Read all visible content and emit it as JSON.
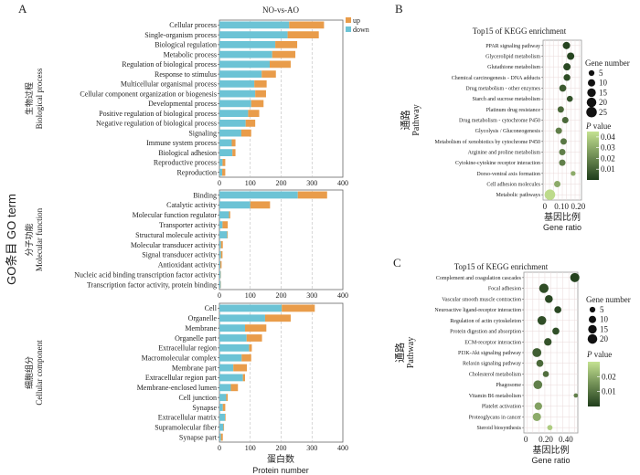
{
  "panel_labels": {
    "a": "A",
    "b": "B",
    "c": "C"
  },
  "colors": {
    "up": "#e99c4a",
    "down": "#6cc3d5",
    "pvalue_low": "#1f3d1b",
    "pvalue_high": "#c4e291"
  },
  "chart_data": [
    {
      "type": "bar",
      "stacked": true,
      "orientation": "horizontal",
      "title": "NO-vs-AO",
      "y_group_label": "GO条目 GO term",
      "xlabel_cn": "蛋白数",
      "xlabel": "Protein number",
      "xlim": [
        0,
        400
      ],
      "xticks": [
        "0",
        "100",
        "200",
        "300",
        "400"
      ],
      "grid": "vertical dashed",
      "legend": {
        "position": "top-right",
        "entries": [
          "up",
          "down"
        ]
      },
      "groups": [
        {
          "label_cn": "生物过程",
          "label": "Biological process",
          "categories": [
            "Cellular process",
            "Single-organism process",
            "Biological regulation",
            "Metabolic process",
            "Regulation of biological process",
            "Response to stimulus",
            "Multicellular organismal process",
            "Cellular component organization or biogenesis",
            "Developmental process",
            "Positive regulation of biological process",
            "Negative regulation of biological process",
            "Signaling",
            "Immune system process",
            "Biological adhesion",
            "Reproductive process",
            "Reproduction"
          ],
          "series": [
            {
              "name": "down",
              "values": [
                226,
                221,
                181,
                171,
                163,
                137,
                113,
                116,
                103,
                93,
                85,
                71,
                40,
                42,
                10,
                9
              ]
            },
            {
              "name": "up",
              "values": [
                113,
                101,
                71,
                75,
                68,
                46,
                40,
                35,
                40,
                36,
                31,
                32,
                12,
                10,
                9,
                10
              ]
            }
          ]
        },
        {
          "label_cn": "分子功能",
          "label": "Molecular function",
          "categories": [
            "Binding",
            "Catalytic activity",
            "Molecular function regulator",
            "Transporter activity",
            "Structural molecule activity",
            "Molecular transducer activity",
            "Signal transducer activity",
            "Antioxidant activity",
            "Nucleic acid binding transcription factor activity",
            "Transcription factor activity, protein binding"
          ],
          "series": [
            {
              "name": "down",
              "values": [
                254,
                100,
                31,
                10,
                25,
                5,
                5,
                3,
                4,
                4
              ]
            },
            {
              "name": "up",
              "values": [
                95,
                64,
                4,
                17,
                2,
                6,
                5,
                4,
                1,
                1
              ]
            }
          ]
        },
        {
          "label_cn": "细胞组分",
          "label": "Cellular component",
          "categories": [
            "Cell",
            "Organelle",
            "Membrane",
            "Organelle part",
            "Extracellular region",
            "Macromolecular complex",
            "Membrane part",
            "Extracellular region part",
            "Membrane-enclosed lumen",
            "Cell junction",
            "Synapse",
            "Extracellular matrix",
            "Supramolecular fiber",
            "Synapse part"
          ],
          "series": [
            {
              "name": "down",
              "values": [
                202,
                148,
                83,
                88,
                96,
                72,
                45,
                76,
                37,
                22,
                11,
                18,
                13,
                5
              ]
            },
            {
              "name": "up",
              "values": [
                107,
                83,
                69,
                50,
                9,
                31,
                44,
                7,
                23,
                5,
                8,
                2,
                2,
                6
              ]
            }
          ]
        }
      ]
    },
    {
      "type": "scatter",
      "title": "Top15 of KEGG enrichment",
      "ylabel_cn": "通路",
      "ylabel": "Pathway",
      "xlabel_cn": "基因比例",
      "xlabel": "Gene ratio",
      "xlim": [
        -0.01,
        0.22
      ],
      "xticks": [
        {
          "v": 0,
          "label": "0"
        },
        {
          "v": 0.1,
          "label": "0.10"
        },
        {
          "v": 0.2,
          "label": "0.20"
        }
      ],
      "size_legend": {
        "title": "Gene number",
        "values": [
          5,
          10,
          15,
          20,
          25
        ]
      },
      "color_legend": {
        "title_italic": "P",
        "title_rest": " value",
        "range": [
          0,
          0.045
        ],
        "ticks": [
          "0.04",
          "0.03",
          "0.02",
          "0.01"
        ],
        "tick_values": [
          0.04,
          0.03,
          0.02,
          0.01
        ]
      },
      "grid": true,
      "points": [
        {
          "pathway": "PPAR signaling pathway",
          "gene_ratio": 0.13,
          "gene_number": 10,
          "p_value": 0.002
        },
        {
          "pathway": "Glycerolipid metabolism",
          "gene_ratio": 0.155,
          "gene_number": 10,
          "p_value": 0.002
        },
        {
          "pathway": "Glutathione metabolism",
          "gene_ratio": 0.133,
          "gene_number": 10,
          "p_value": 0.003
        },
        {
          "pathway": "Chemical carcinogenesis - DNA adducts",
          "gene_ratio": 0.133,
          "gene_number": 8,
          "p_value": 0.004
        },
        {
          "pathway": "Drug metabolism - other enzymes",
          "gene_ratio": 0.108,
          "gene_number": 9,
          "p_value": 0.008
        },
        {
          "pathway": "Starch and sucrose metabolism",
          "gene_ratio": 0.15,
          "gene_number": 6,
          "p_value": 0.006
        },
        {
          "pathway": "Platinum drug resistance",
          "gene_ratio": 0.096,
          "gene_number": 7,
          "p_value": 0.012
        },
        {
          "pathway": "Drug metabolism - cytochrome P450",
          "gene_ratio": 0.123,
          "gene_number": 7,
          "p_value": 0.012
        },
        {
          "pathway": "Glycolysis / Gluconeogenesis",
          "gene_ratio": 0.084,
          "gene_number": 7,
          "p_value": 0.018
        },
        {
          "pathway": "Metabolism of xenobiotics by cytochrome P450",
          "gene_ratio": 0.113,
          "gene_number": 7,
          "p_value": 0.016
        },
        {
          "pathway": "Arginine and proline metabolism",
          "gene_ratio": 0.105,
          "gene_number": 7,
          "p_value": 0.018
        },
        {
          "pathway": "Cytokine-cytokine receptor interaction",
          "gene_ratio": 0.105,
          "gene_number": 7,
          "p_value": 0.018
        },
        {
          "pathway": "Dorso-ventral axis formation",
          "gene_ratio": 0.17,
          "gene_number": 3,
          "p_value": 0.03
        },
        {
          "pathway": "Cell adhesion molecules",
          "gene_ratio": 0.075,
          "gene_number": 7,
          "p_value": 0.03
        },
        {
          "pathway": "Metabolic pathways",
          "gene_ratio": 0.031,
          "gene_number": 25,
          "p_value": 0.043
        }
      ]
    },
    {
      "type": "scatter",
      "title": "Top15 of KEGG enrichment",
      "ylabel_cn": "通路",
      "ylabel": "Pathway",
      "xlabel_cn": "基因比例",
      "xlabel": "Gene ratio",
      "xlim": [
        -0.02,
        0.52
      ],
      "xticks": [
        {
          "v": 0,
          "label": "0"
        },
        {
          "v": 0.2,
          "label": "0.20"
        },
        {
          "v": 0.4,
          "label": "0.40"
        }
      ],
      "size_legend": {
        "title": "Gene number",
        "values": [
          5,
          10,
          15,
          20
        ]
      },
      "color_legend": {
        "title_italic": "P",
        "title_rest": " value",
        "range": [
          0,
          0.03
        ],
        "ticks": [
          "0.02",
          "0.01"
        ],
        "tick_values": [
          0.02,
          0.01
        ]
      },
      "grid": true,
      "points": [
        {
          "pathway": "Complement and coagulation cascades",
          "gene_ratio": 0.49,
          "gene_number": 18,
          "p_value": 0.001
        },
        {
          "pathway": "Focal adhesion",
          "gene_ratio": 0.18,
          "gene_number": 19,
          "p_value": 0.003
        },
        {
          "pathway": "Vascular smooth muscle contraction",
          "gene_ratio": 0.23,
          "gene_number": 12,
          "p_value": 0.002
        },
        {
          "pathway": "Neuroactive ligand-receptor interaction",
          "gene_ratio": 0.32,
          "gene_number": 9,
          "p_value": 0.002
        },
        {
          "pathway": "Regulation of actin cytoskeleton",
          "gene_ratio": 0.16,
          "gene_number": 16,
          "p_value": 0.003
        },
        {
          "pathway": "Protein digestion and absorption",
          "gene_ratio": 0.3,
          "gene_number": 9,
          "p_value": 0.003
        },
        {
          "pathway": "ECM-receptor interaction",
          "gene_ratio": 0.22,
          "gene_number": 11,
          "p_value": 0.004
        },
        {
          "pathway": "PI3K-Akt signaling pathway",
          "gene_ratio": 0.11,
          "gene_number": 17,
          "p_value": 0.006
        },
        {
          "pathway": "Relaxin signaling pathway",
          "gene_ratio": 0.14,
          "gene_number": 9,
          "p_value": 0.008
        },
        {
          "pathway": "Cholesterol metabolism",
          "gene_ratio": 0.2,
          "gene_number": 6,
          "p_value": 0.009
        },
        {
          "pathway": "Phagosome",
          "gene_ratio": 0.12,
          "gene_number": 16,
          "p_value": 0.012
        },
        {
          "pathway": "Vitamin B6 metabolism",
          "gene_ratio": 0.5,
          "gene_number": 2,
          "p_value": 0.012
        },
        {
          "pathway": "Platelet activation",
          "gene_ratio": 0.125,
          "gene_number": 11,
          "p_value": 0.018
        },
        {
          "pathway": "Proteoglycans in cancer",
          "gene_ratio": 0.11,
          "gene_number": 14,
          "p_value": 0.02
        },
        {
          "pathway": "Steroid biosynthesis",
          "gene_ratio": 0.24,
          "gene_number": 4,
          "p_value": 0.026
        }
      ]
    }
  ]
}
